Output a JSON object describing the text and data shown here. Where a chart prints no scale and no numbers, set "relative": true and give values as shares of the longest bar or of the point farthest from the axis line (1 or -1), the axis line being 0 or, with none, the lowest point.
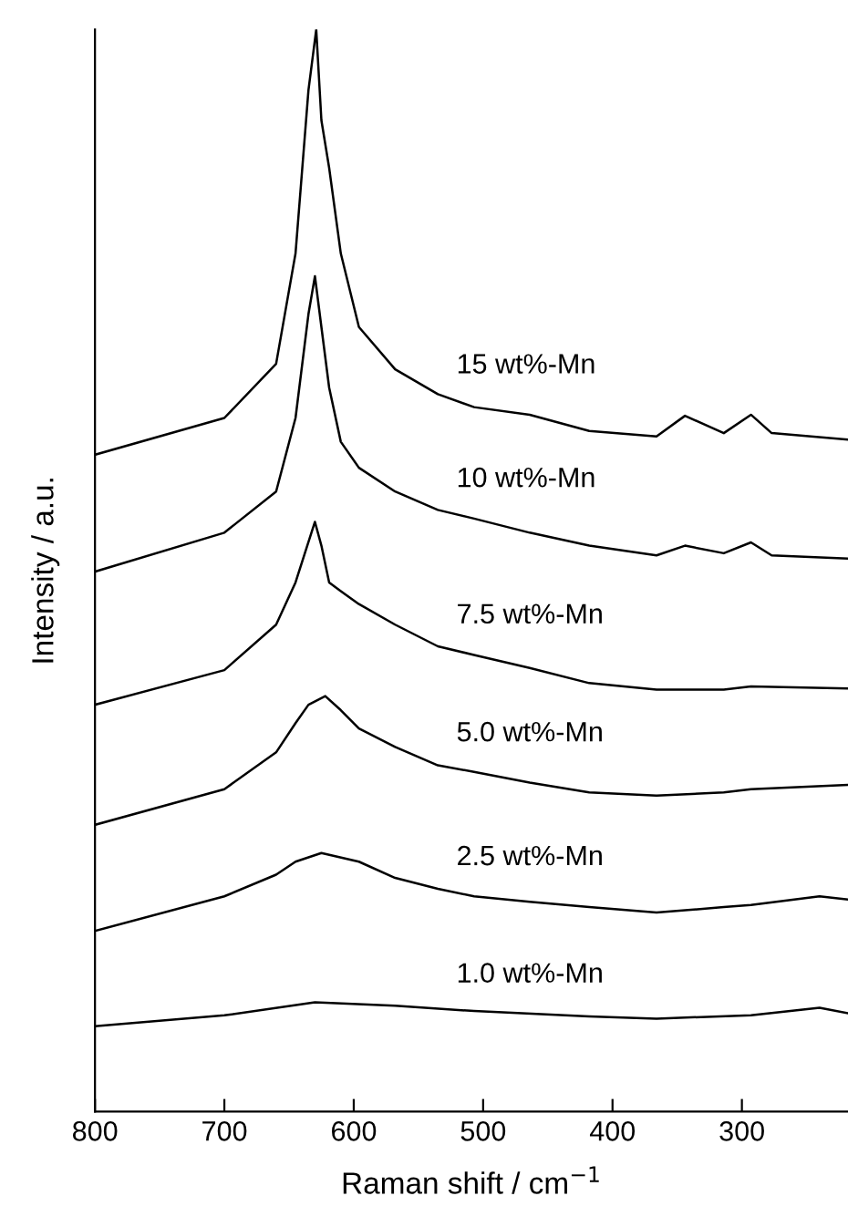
{
  "chart_data": {
    "type": "line",
    "relative": true,
    "xlabel": "Raman shift / cm$^{−1}$",
    "ylabel": "Intensity / a.u.",
    "xlim": [
      800,
      218
    ],
    "xticks": [
      800,
      700,
      600,
      500,
      400,
      300
    ],
    "grid": false,
    "legend": false,
    "marker": "none",
    "line_style": "solid",
    "series": [
      {
        "name": "15 wt%-Mn",
        "color": "#000000",
        "x": [
          800,
          700,
          660,
          645,
          635,
          629,
          625,
          619,
          610,
          596,
          568,
          535,
          507,
          464,
          418,
          366,
          344,
          314,
          293,
          277,
          218
        ],
        "values": [
          0.607,
          0.641,
          0.691,
          0.793,
          0.944,
          1.0,
          0.916,
          0.872,
          0.793,
          0.725,
          0.686,
          0.663,
          0.651,
          0.644,
          0.629,
          0.624,
          0.643,
          0.627,
          0.644,
          0.627,
          0.621
        ]
      },
      {
        "name": "10 wt%-Mn",
        "color": "#000000",
        "x": [
          800,
          700,
          660,
          645,
          635,
          630,
          625,
          619,
          610,
          596,
          568,
          535,
          507,
          464,
          418,
          366,
          344,
          314,
          293,
          277,
          218
        ],
        "values": [
          0.499,
          0.535,
          0.573,
          0.641,
          0.737,
          0.772,
          0.725,
          0.669,
          0.619,
          0.595,
          0.573,
          0.556,
          0.548,
          0.535,
          0.523,
          0.514,
          0.523,
          0.516,
          0.526,
          0.514,
          0.511
        ]
      },
      {
        "name": "7.5 wt%-Mn",
        "color": "#000000",
        "x": [
          800,
          700,
          660,
          645,
          630,
          625,
          619,
          610,
          596,
          568,
          535,
          507,
          464,
          418,
          366,
          314,
          293,
          218
        ],
        "values": [
          0.376,
          0.408,
          0.45,
          0.489,
          0.545,
          0.523,
          0.489,
          0.481,
          0.469,
          0.45,
          0.43,
          0.422,
          0.41,
          0.396,
          0.39,
          0.39,
          0.393,
          0.391
        ]
      },
      {
        "name": "5.0 wt%-Mn",
        "color": "#000000",
        "x": [
          800,
          700,
          660,
          645,
          635,
          622,
          610,
          596,
          568,
          535,
          507,
          464,
          418,
          366,
          314,
          293,
          218
        ],
        "values": [
          0.265,
          0.298,
          0.332,
          0.359,
          0.376,
          0.384,
          0.371,
          0.354,
          0.337,
          0.32,
          0.314,
          0.304,
          0.295,
          0.292,
          0.295,
          0.298,
          0.302
        ]
      },
      {
        "name": "2.5 wt%-Mn",
        "color": "#000000",
        "x": [
          800,
          700,
          660,
          645,
          625,
          596,
          568,
          535,
          507,
          464,
          418,
          366,
          314,
          293,
          240,
          218
        ],
        "values": [
          0.167,
          0.199,
          0.219,
          0.231,
          0.239,
          0.231,
          0.216,
          0.206,
          0.199,
          0.194,
          0.189,
          0.184,
          0.189,
          0.191,
          0.199,
          0.196
        ]
      },
      {
        "name": "1.0 wt%-Mn",
        "color": "#000000",
        "x": [
          800,
          700,
          630,
          568,
          507,
          418,
          366,
          293,
          240,
          218
        ],
        "values": [
          0.079,
          0.089,
          0.101,
          0.098,
          0.093,
          0.088,
          0.086,
          0.089,
          0.096,
          0.091
        ]
      }
    ]
  }
}
